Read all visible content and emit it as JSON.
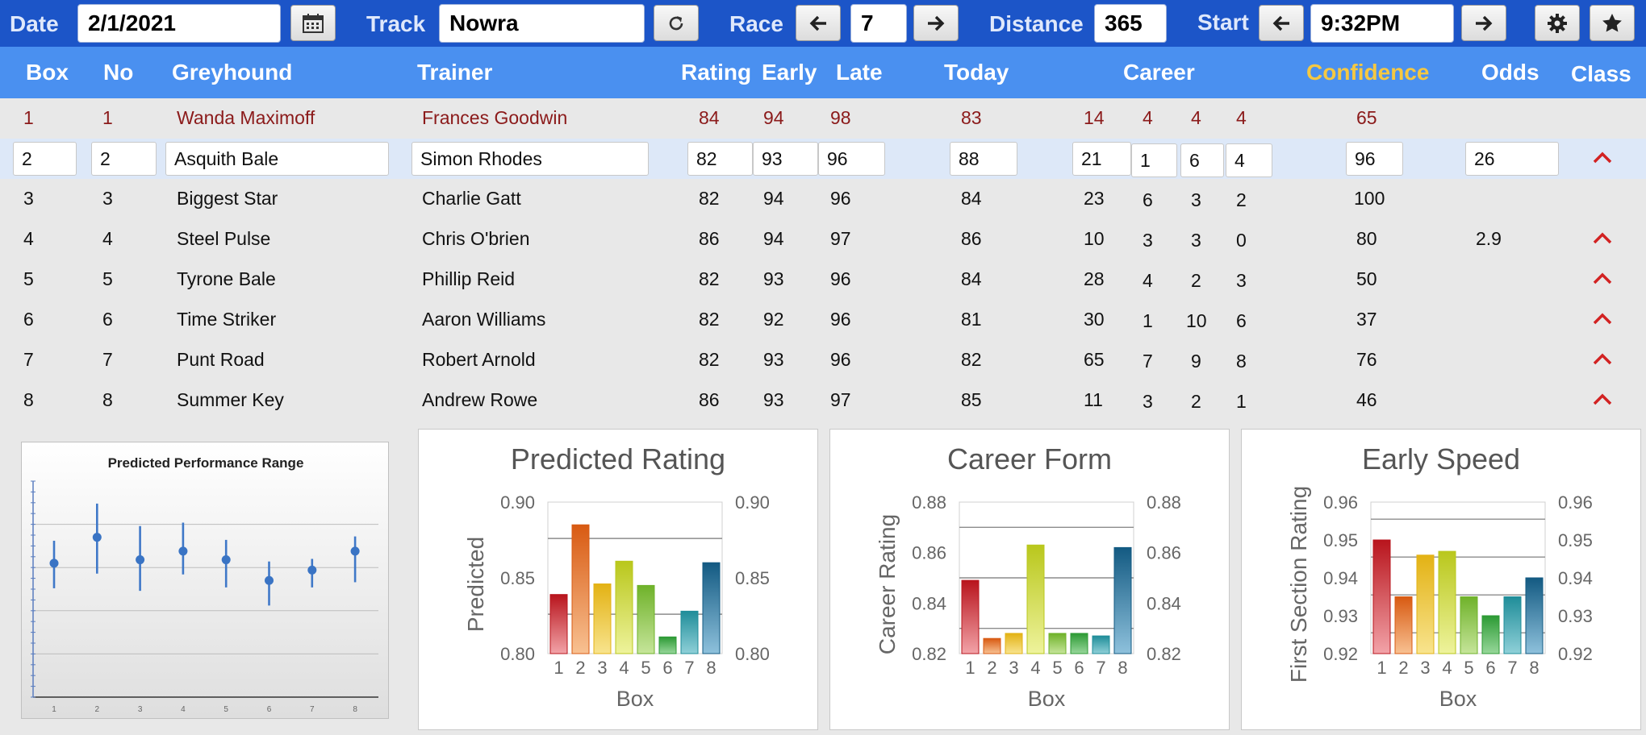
{
  "toolbar": {
    "date_label": "Date",
    "date_value": "2/1/2021",
    "track_label": "Track",
    "track_value": "Nowra",
    "race_label": "Race",
    "race_value": "7",
    "distance_label": "Distance",
    "distance_value": "365",
    "start_label": "Start",
    "start_value": "9:32PM"
  },
  "icons": [
    "calendar-icon",
    "refresh-icon",
    "arrow-left-icon",
    "arrow-right-icon",
    "gear-icon",
    "star-icon",
    "chevron-up-icon"
  ],
  "colors": {
    "toolbar": "#1c55c8",
    "header": "#4a90f0",
    "confidence_header": "#f5c842",
    "row1_text": "#8b1a1a",
    "caret": "#d22222"
  },
  "header": {
    "box": "Box",
    "no": "No",
    "greyhound": "Greyhound",
    "trainer": "Trainer",
    "rating": "Rating",
    "early": "Early",
    "late": "Late",
    "today": "Today",
    "career": "Career",
    "confidence": "Confidence",
    "odds": "Odds",
    "class": "Class"
  },
  "runners": [
    {
      "box": "1",
      "no": "1",
      "name": "Wanda Maximoff",
      "trainer": "Frances Goodwin",
      "rating": "84",
      "early": "94",
      "late": "98",
      "today": "83",
      "starts": "14",
      "c1": "4",
      "c2": "4",
      "c3": "4",
      "confidence": "65",
      "odds": "",
      "class_up": false
    },
    {
      "box": "2",
      "no": "2",
      "name": "Asquith Bale",
      "trainer": "Simon Rhodes",
      "rating": "82",
      "early": "93",
      "late": "96",
      "today": "88",
      "starts": "21",
      "c1": "1",
      "c2": "6",
      "c3": "4",
      "confidence": "96",
      "odds": "26",
      "class_up": true
    },
    {
      "box": "3",
      "no": "3",
      "name": "Biggest Star",
      "trainer": "Charlie Gatt",
      "rating": "82",
      "early": "94",
      "late": "96",
      "today": "84",
      "starts": "23",
      "c1": "6",
      "c2": "3",
      "c3": "2",
      "confidence": "100",
      "odds": "",
      "class_up": false
    },
    {
      "box": "4",
      "no": "4",
      "name": "Steel Pulse",
      "trainer": "Chris O'brien",
      "rating": "86",
      "early": "94",
      "late": "97",
      "today": "86",
      "starts": "10",
      "c1": "3",
      "c2": "3",
      "c3": "0",
      "confidence": "80",
      "odds": "2.9",
      "class_up": true
    },
    {
      "box": "5",
      "no": "5",
      "name": "Tyrone Bale",
      "trainer": "Phillip Reid",
      "rating": "82",
      "early": "93",
      "late": "96",
      "today": "84",
      "starts": "28",
      "c1": "4",
      "c2": "2",
      "c3": "3",
      "confidence": "50",
      "odds": "",
      "class_up": true
    },
    {
      "box": "6",
      "no": "6",
      "name": "Time Striker",
      "trainer": "Aaron Williams",
      "rating": "82",
      "early": "92",
      "late": "96",
      "today": "81",
      "starts": "30",
      "c1": "1",
      "c2": "10",
      "c3": "6",
      "confidence": "37",
      "odds": "",
      "class_up": true
    },
    {
      "box": "7",
      "no": "7",
      "name": "Punt Road",
      "trainer": "Robert Arnold",
      "rating": "82",
      "early": "93",
      "late": "96",
      "today": "82",
      "starts": "65",
      "c1": "7",
      "c2": "9",
      "c3": "8",
      "confidence": "76",
      "odds": "",
      "class_up": true
    },
    {
      "box": "8",
      "no": "8",
      "name": "Summer Key",
      "trainer": "Andrew Rowe",
      "rating": "86",
      "early": "93",
      "late": "97",
      "today": "85",
      "starts": "11",
      "c1": "3",
      "c2": "2",
      "c3": "1",
      "confidence": "46",
      "odds": "",
      "class_up": true
    }
  ],
  "chart_data": [
    {
      "type": "scatter",
      "title": "Predicted Performance Range",
      "x": [
        "1",
        "2",
        "3",
        "4",
        "5",
        "6",
        "7",
        "8"
      ],
      "points": [
        0.855,
        0.885,
        0.859,
        0.869,
        0.859,
        0.835,
        0.847,
        0.869
      ],
      "low": [
        0.826,
        0.843,
        0.823,
        0.842,
        0.827,
        0.806,
        0.827,
        0.833
      ],
      "high": [
        0.881,
        0.924,
        0.898,
        0.902,
        0.882,
        0.857,
        0.86,
        0.886
      ],
      "ylim": [
        0.7,
        0.95
      ],
      "grid": true
    },
    {
      "type": "bar",
      "title": "Predicted Rating",
      "xlabel": "Box",
      "ylabel": "Predicted",
      "categories": [
        "1",
        "2",
        "3",
        "4",
        "5",
        "6",
        "7",
        "8"
      ],
      "values": [
        0.839,
        0.885,
        0.846,
        0.861,
        0.845,
        0.811,
        0.828,
        0.86
      ],
      "ylim": [
        0.8,
        0.9
      ],
      "yticks": [
        "0.80",
        "0.85",
        "0.90"
      ],
      "gridlines": [
        0.826,
        0.876
      ]
    },
    {
      "type": "bar",
      "title": "Career Form",
      "xlabel": "Box",
      "ylabel": "Career Rating",
      "categories": [
        "1",
        "2",
        "3",
        "4",
        "5",
        "6",
        "7",
        "8"
      ],
      "values": [
        0.849,
        0.826,
        0.828,
        0.863,
        0.828,
        0.828,
        0.827,
        0.862
      ],
      "ylim": [
        0.82,
        0.88
      ],
      "yticks": [
        "0.82",
        "0.84",
        "0.86",
        "0.88"
      ],
      "gridlines": [
        0.83,
        0.85,
        0.87
      ]
    },
    {
      "type": "bar",
      "title": "Early Speed",
      "xlabel": "Box",
      "ylabel": "First Section Rating",
      "categories": [
        "1",
        "2",
        "3",
        "4",
        "5",
        "6",
        "7",
        "8"
      ],
      "values": [
        0.95,
        0.935,
        0.946,
        0.947,
        0.935,
        0.93,
        0.935,
        0.94
      ],
      "ylim": [
        0.92,
        0.96
      ],
      "yticks": [
        "0.92",
        "0.93",
        "0.94",
        "0.95",
        "0.96"
      ],
      "gridlines": [
        0.9255,
        0.9355,
        0.9455,
        0.9555
      ]
    }
  ]
}
